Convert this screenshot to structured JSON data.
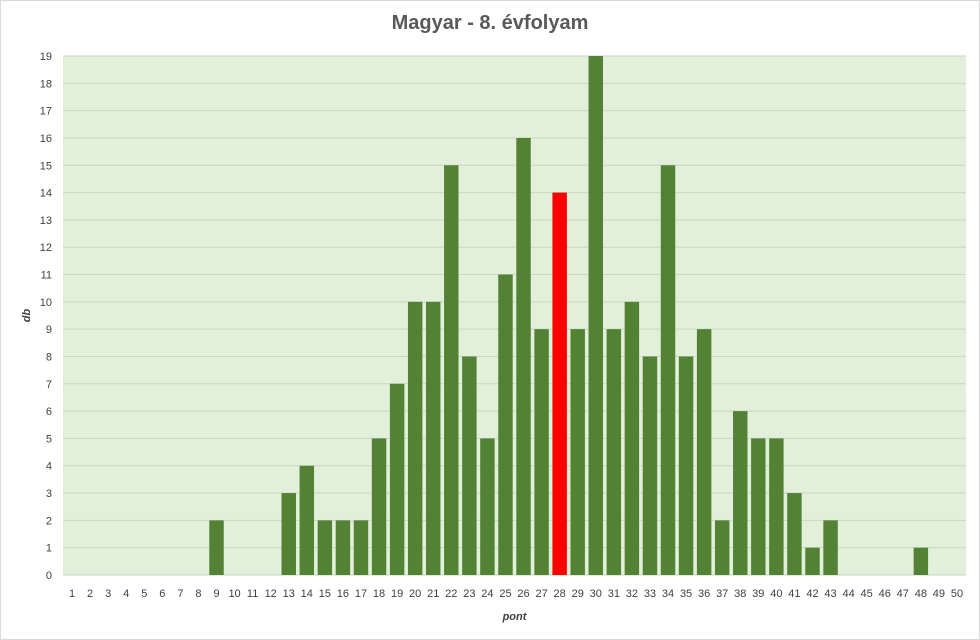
{
  "chart_data": {
    "type": "bar",
    "title": "Magyar - 8. évfolyam",
    "xlabel": "pont",
    "ylabel": "db",
    "ylim": [
      0,
      19
    ],
    "grid": true,
    "colors": {
      "bar": "#548235",
      "highlight": "#ff0000",
      "plot_bg": "#e2efda",
      "grid": "#c9d6c1"
    },
    "highlight_category": "28",
    "categories": [
      "1",
      "2",
      "3",
      "4",
      "5",
      "6",
      "7",
      "8",
      "9",
      "10",
      "11",
      "12",
      "13",
      "14",
      "15",
      "16",
      "17",
      "18",
      "19",
      "20",
      "21",
      "22",
      "23",
      "24",
      "25",
      "26",
      "27",
      "28",
      "29",
      "30",
      "31",
      "32",
      "33",
      "34",
      "35",
      "36",
      "37",
      "38",
      "39",
      "40",
      "41",
      "42",
      "43",
      "44",
      "45",
      "46",
      "47",
      "48",
      "49",
      "50"
    ],
    "values": [
      0,
      0,
      0,
      0,
      0,
      0,
      0,
      0,
      2,
      0,
      0,
      0,
      3,
      4,
      2,
      2,
      2,
      5,
      7,
      10,
      10,
      15,
      8,
      5,
      11,
      16,
      9,
      14,
      9,
      19,
      9,
      10,
      8,
      15,
      8,
      9,
      2,
      6,
      5,
      5,
      3,
      1,
      2,
      0,
      0,
      0,
      0,
      1,
      0,
      0
    ],
    "yticks": [
      "0",
      "1",
      "2",
      "3",
      "4",
      "5",
      "6",
      "7",
      "8",
      "9",
      "10",
      "11",
      "12",
      "13",
      "14",
      "15",
      "16",
      "17",
      "18",
      "19"
    ]
  }
}
